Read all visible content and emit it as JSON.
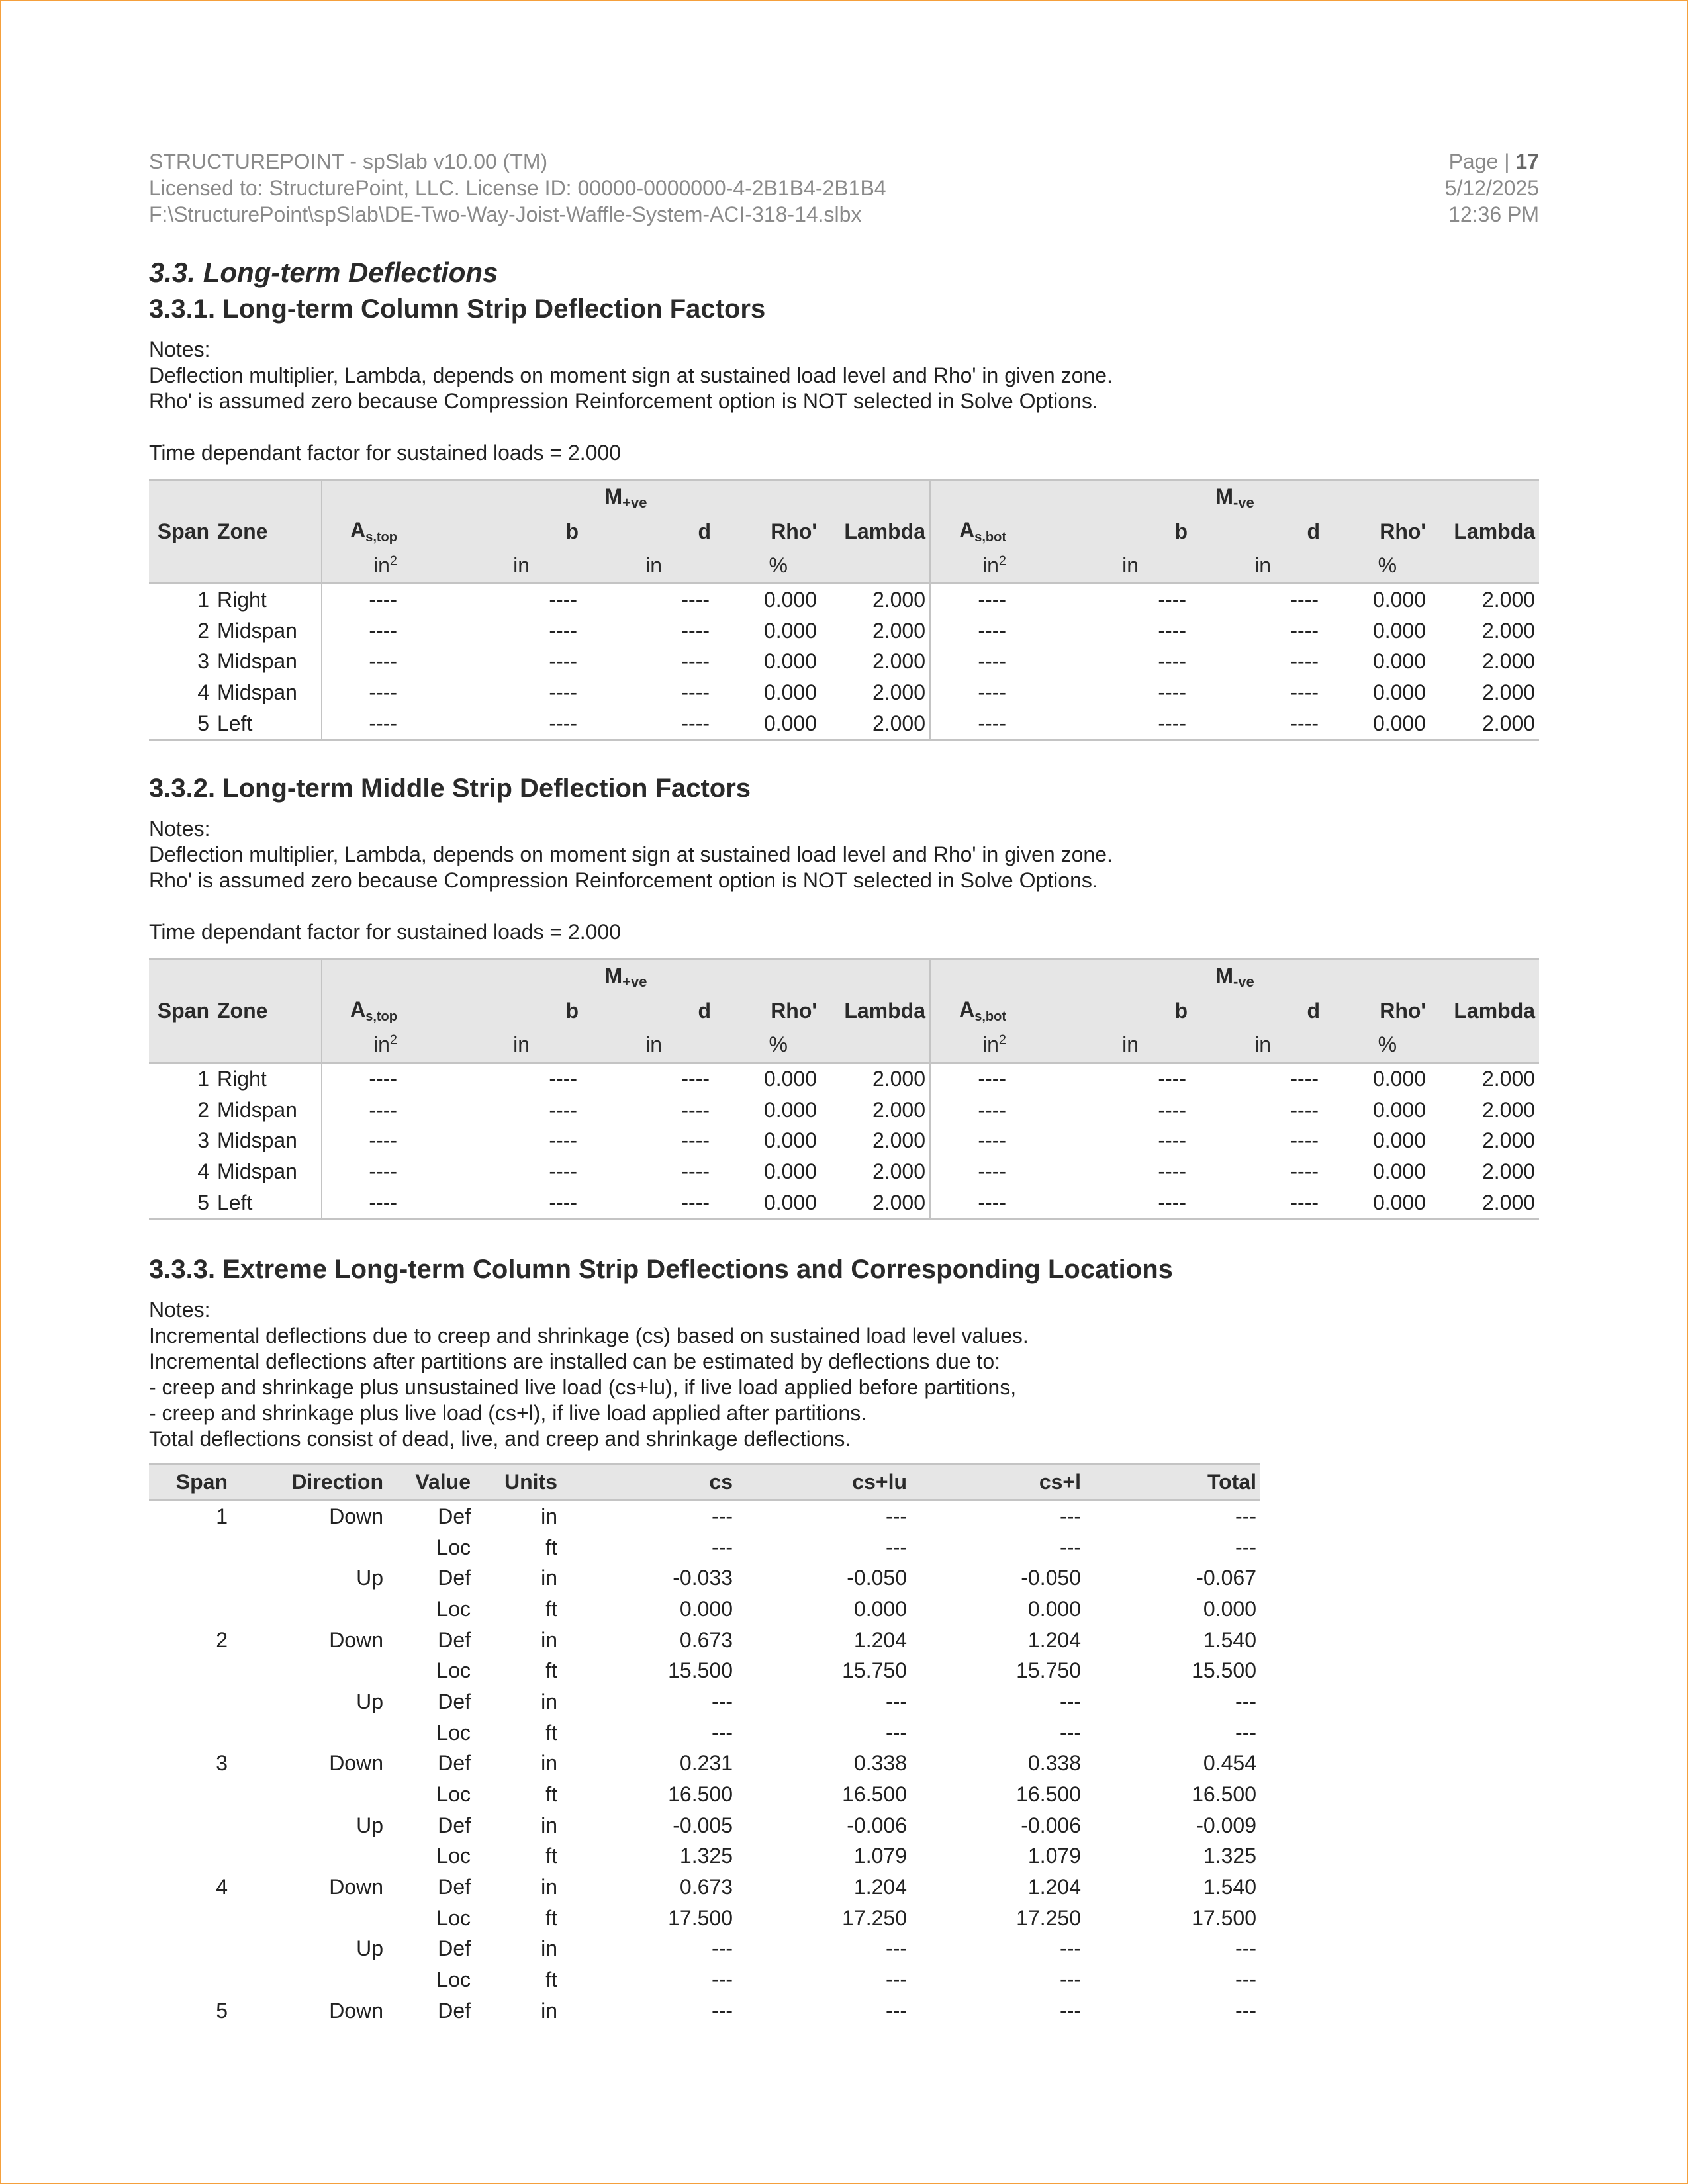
{
  "header": {
    "line1": "STRUCTUREPOINT - spSlab v10.00 (TM)",
    "line2": "Licensed to: StructurePoint, LLC. License ID: 00000-0000000-4-2B1B4-2B1B4",
    "line3": "F:\\StructurePoint\\spSlab\\DE-Two-Way-Joist-Waffle-System-ACI-318-14.slbx",
    "page_label": "Page | ",
    "page_number": "17",
    "date": "5/12/2025",
    "time": "12:36 PM"
  },
  "section_title": "3.3. Long-term Deflections",
  "factor_tables": [
    {
      "title": "3.3.1. Long-term Column Strip Deflection Factors",
      "notes": [
        "Notes:",
        "Deflection multiplier, Lambda, depends on moment sign at sustained load level and Rho' in given zone.",
        "Rho' is assumed zero because Compression Reinforcement option is NOT selected in Solve Options."
      ],
      "factor_line": "Time dependant factor for sustained loads = 2.000",
      "rows": [
        [
          "1",
          "Right",
          "----",
          "----",
          "----",
          "0.000",
          "2.000",
          "----",
          "----",
          "----",
          "0.000",
          "2.000"
        ],
        [
          "2",
          "Midspan",
          "----",
          "----",
          "----",
          "0.000",
          "2.000",
          "----",
          "----",
          "----",
          "0.000",
          "2.000"
        ],
        [
          "3",
          "Midspan",
          "----",
          "----",
          "----",
          "0.000",
          "2.000",
          "----",
          "----",
          "----",
          "0.000",
          "2.000"
        ],
        [
          "4",
          "Midspan",
          "----",
          "----",
          "----",
          "0.000",
          "2.000",
          "----",
          "----",
          "----",
          "0.000",
          "2.000"
        ],
        [
          "5",
          "Left",
          "----",
          "----",
          "----",
          "0.000",
          "2.000",
          "----",
          "----",
          "----",
          "0.000",
          "2.000"
        ]
      ]
    },
    {
      "title": "3.3.2. Long-term Middle Strip Deflection Factors",
      "notes": [
        "Notes:",
        "Deflection multiplier, Lambda, depends on moment sign at sustained load level and Rho' in given zone.",
        "Rho' is assumed zero because Compression Reinforcement option is NOT selected in Solve Options."
      ],
      "factor_line": "Time dependant factor for sustained loads = 2.000",
      "rows": [
        [
          "1",
          "Right",
          "----",
          "----",
          "----",
          "0.000",
          "2.000",
          "----",
          "----",
          "----",
          "0.000",
          "2.000"
        ],
        [
          "2",
          "Midspan",
          "----",
          "----",
          "----",
          "0.000",
          "2.000",
          "----",
          "----",
          "----",
          "0.000",
          "2.000"
        ],
        [
          "3",
          "Midspan",
          "----",
          "----",
          "----",
          "0.000",
          "2.000",
          "----",
          "----",
          "----",
          "0.000",
          "2.000"
        ],
        [
          "4",
          "Midspan",
          "----",
          "----",
          "----",
          "0.000",
          "2.000",
          "----",
          "----",
          "----",
          "0.000",
          "2.000"
        ],
        [
          "5",
          "Left",
          "----",
          "----",
          "----",
          "0.000",
          "2.000",
          "----",
          "----",
          "----",
          "0.000",
          "2.000"
        ]
      ]
    }
  ],
  "factor_headers": {
    "m_pos": "M",
    "m_pos_sub": "+ve",
    "m_neg": "M",
    "m_neg_sub": "-ve",
    "span": "Span",
    "zone": "Zone",
    "as_top": "A",
    "as_top_sub": "s,top",
    "as_bot": "A",
    "as_bot_sub": "s,bot",
    "b": "b",
    "d": "d",
    "rho": "Rho'",
    "lambda": "Lambda",
    "unit_as": "in",
    "unit_as_sup": "2",
    "unit_in": "in",
    "unit_pct": "%"
  },
  "extreme": {
    "title": "3.3.3. Extreme Long-term Column Strip Deflections and Corresponding Locations",
    "notes": [
      "Notes:",
      "Incremental deflections due to creep and shrinkage (cs) based on sustained load level values.",
      "Incremental deflections after partitions are installed can be estimated by deflections due to:",
      "- creep and shrinkage plus unsustained live load (cs+lu), if live load applied before partitions,",
      "- creep and shrinkage plus live load (cs+l), if live load applied after partitions.",
      "Total deflections consist of dead, live, and creep and shrinkage deflections."
    ],
    "columns": [
      "Span",
      "Direction",
      "Value",
      "Units",
      "cs",
      "cs+lu",
      "cs+l",
      "Total"
    ],
    "rows": [
      [
        "1",
        "Down",
        "Def",
        "in",
        "---",
        "---",
        "---",
        "---"
      ],
      [
        "",
        "",
        "Loc",
        "ft",
        "---",
        "---",
        "---",
        "---"
      ],
      [
        "",
        "Up",
        "Def",
        "in",
        "-0.033",
        "-0.050",
        "-0.050",
        "-0.067"
      ],
      [
        "",
        "",
        "Loc",
        "ft",
        "0.000",
        "0.000",
        "0.000",
        "0.000"
      ],
      [
        "2",
        "Down",
        "Def",
        "in",
        "0.673",
        "1.204",
        "1.204",
        "1.540"
      ],
      [
        "",
        "",
        "Loc",
        "ft",
        "15.500",
        "15.750",
        "15.750",
        "15.500"
      ],
      [
        "",
        "Up",
        "Def",
        "in",
        "---",
        "---",
        "---",
        "---"
      ],
      [
        "",
        "",
        "Loc",
        "ft",
        "---",
        "---",
        "---",
        "---"
      ],
      [
        "3",
        "Down",
        "Def",
        "in",
        "0.231",
        "0.338",
        "0.338",
        "0.454"
      ],
      [
        "",
        "",
        "Loc",
        "ft",
        "16.500",
        "16.500",
        "16.500",
        "16.500"
      ],
      [
        "",
        "Up",
        "Def",
        "in",
        "-0.005",
        "-0.006",
        "-0.006",
        "-0.009"
      ],
      [
        "",
        "",
        "Loc",
        "ft",
        "1.325",
        "1.079",
        "1.079",
        "1.325"
      ],
      [
        "4",
        "Down",
        "Def",
        "in",
        "0.673",
        "1.204",
        "1.204",
        "1.540"
      ],
      [
        "",
        "",
        "Loc",
        "ft",
        "17.500",
        "17.250",
        "17.250",
        "17.500"
      ],
      [
        "",
        "Up",
        "Def",
        "in",
        "---",
        "---",
        "---",
        "---"
      ],
      [
        "",
        "",
        "Loc",
        "ft",
        "---",
        "---",
        "---",
        "---"
      ],
      [
        "5",
        "Down",
        "Def",
        "in",
        "---",
        "---",
        "---",
        "---"
      ]
    ]
  }
}
